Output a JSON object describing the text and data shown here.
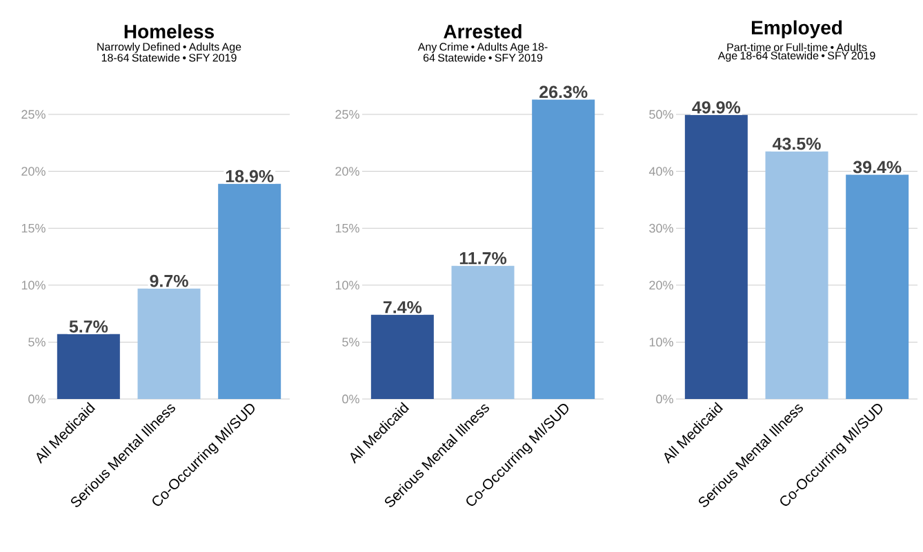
{
  "chart_data": [
    {
      "type": "bar",
      "title": "Homeless",
      "subtitle": "Narrowly Defined • Adults Age 18-64 Statewide • SFY 2019",
      "categories": [
        "All Medicaid",
        "Serious Mental Illness",
        "Co-Occurring MI/SUD"
      ],
      "values": [
        5.7,
        9.7,
        18.9
      ],
      "colors": [
        "#2f5597",
        "#9dc3e6",
        "#5b9bd5"
      ],
      "value_labels": [
        "5.7%",
        "9.7%",
        "18.9%"
      ],
      "ylim": [
        0,
        25
      ],
      "yticks": [
        {
          "value": 0,
          "label": "0%"
        },
        {
          "value": 5,
          "label": "5%"
        },
        {
          "value": 10,
          "label": "10%"
        },
        {
          "value": 15,
          "label": "15%"
        },
        {
          "value": 20,
          "label": "20%"
        },
        {
          "value": 25,
          "label": "25%"
        }
      ],
      "grid": "y"
    },
    {
      "type": "bar",
      "title": "Arrested",
      "subtitle": "Any Crime • Adults Age 18-64 Statewide • SFY 2019",
      "categories": [
        "All Medicaid",
        "Serious Mental Illness",
        "Co-Occurring MI/SUD"
      ],
      "values": [
        7.4,
        11.7,
        26.3
      ],
      "colors": [
        "#2f5597",
        "#9dc3e6",
        "#5b9bd5"
      ],
      "value_labels": [
        "7.4%",
        "11.7%",
        "26.3%"
      ],
      "ylim": [
        0,
        26.3
      ],
      "yticks": [
        {
          "value": 0,
          "label": "0%"
        },
        {
          "value": 5,
          "label": "5%"
        },
        {
          "value": 10,
          "label": "10%"
        },
        {
          "value": 15,
          "label": "15%"
        },
        {
          "value": 20,
          "label": "20%"
        },
        {
          "value": 25,
          "label": "25%"
        }
      ],
      "grid": "y"
    },
    {
      "type": "bar",
      "title": "Employed",
      "subtitle": "Part-time or Full-time • Adults Age 18-64 Statewide • SFY 2019",
      "categories": [
        "All Medicaid",
        "Serious Mental Illness",
        "Co-Occurring MI/SUD"
      ],
      "values": [
        49.9,
        43.5,
        39.4
      ],
      "colors": [
        "#2f5597",
        "#9dc3e6",
        "#5b9bd5"
      ],
      "value_labels": [
        "49.9%",
        "43.5%",
        "39.4%"
      ],
      "ylim": [
        0,
        50
      ],
      "yticks": [
        {
          "value": 0,
          "label": "0%"
        },
        {
          "value": 10,
          "label": "10%"
        },
        {
          "value": 20,
          "label": "20%"
        },
        {
          "value": 30,
          "label": "30%"
        },
        {
          "value": 40,
          "label": "40%"
        },
        {
          "value": 50,
          "label": "50%"
        }
      ],
      "grid": "y"
    }
  ]
}
